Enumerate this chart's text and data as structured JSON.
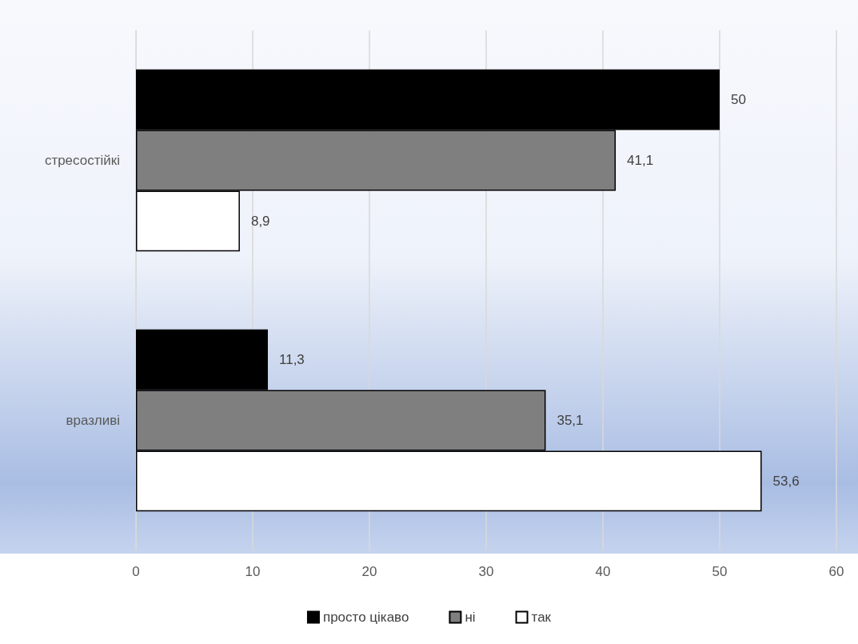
{
  "chart_data": {
    "type": "bar",
    "orientation": "horizontal",
    "categories": [
      "стресостійкі",
      "вразливі"
    ],
    "series": [
      {
        "name": "просто цікаво",
        "color": "#000000",
        "values": [
          50,
          11.3
        ],
        "value_labels": [
          "50",
          "11,3"
        ]
      },
      {
        "name": "ні",
        "color": "#7f7f7f",
        "values": [
          41.1,
          35.1
        ],
        "value_labels": [
          "41,1",
          "35,1"
        ]
      },
      {
        "name": "так",
        "color": "#ffffff",
        "values": [
          8.9,
          53.6
        ],
        "value_labels": [
          "8,9",
          "53,6"
        ]
      }
    ],
    "xlim": [
      0,
      60
    ],
    "xticks": [
      0,
      10,
      20,
      30,
      40,
      50,
      60
    ],
    "grid": "x",
    "legend": "bottom"
  }
}
